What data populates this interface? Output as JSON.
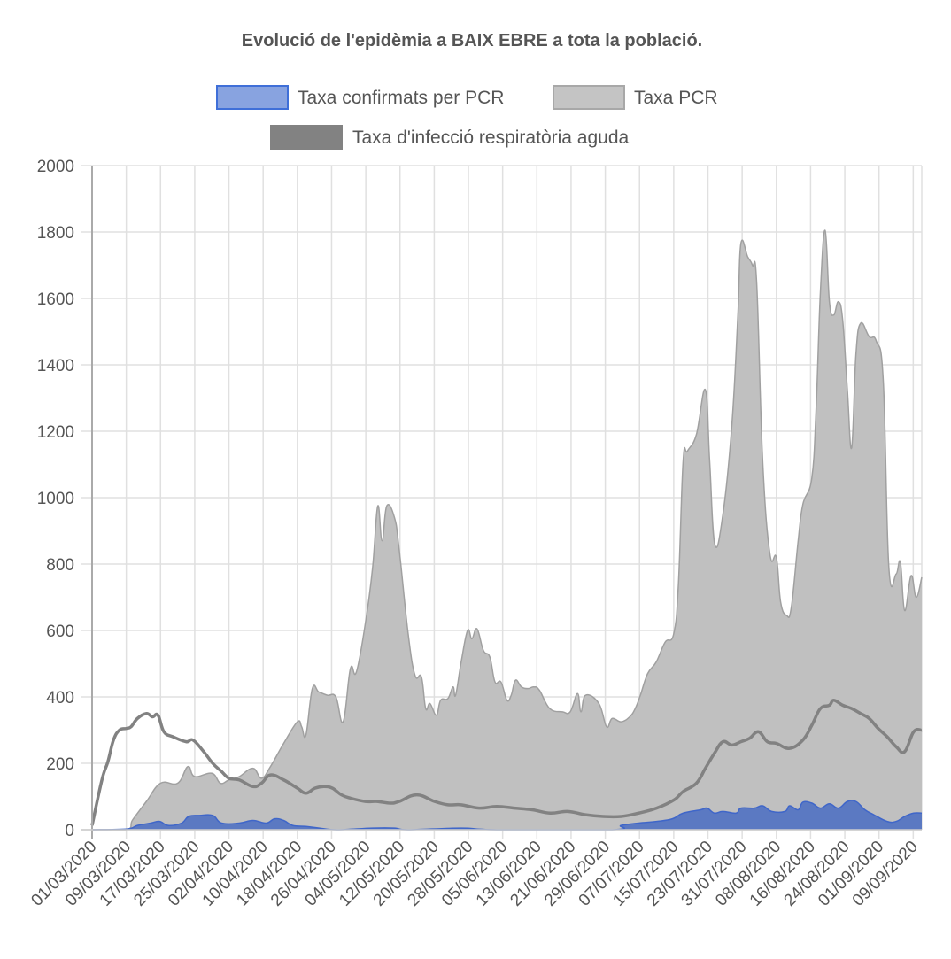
{
  "chart_data": {
    "type": "area",
    "title": "Evolució de l'epidèmia a BAIX EBRE a tota la població.",
    "xlabel": "",
    "ylabel": "",
    "x_unit": "days since 01/03/2020",
    "xlim": [
      0,
      194
    ],
    "ylim": [
      0,
      2000
    ],
    "grid": true,
    "legend_position": "top",
    "y_ticks": [
      "0",
      "200",
      "400",
      "600",
      "800",
      "1000",
      "1200",
      "1400",
      "1600",
      "1800",
      "2000"
    ],
    "x_ticks": [
      "01/03/2020",
      "09/03/2020",
      "17/03/2020",
      "25/03/2020",
      "02/04/2020",
      "10/04/2020",
      "18/04/2020",
      "26/04/2020",
      "04/05/2020",
      "12/05/2020",
      "20/05/2020",
      "28/05/2020",
      "05/06/2020",
      "13/06/2020",
      "21/06/2020",
      "29/06/2020",
      "07/07/2020",
      "15/07/2020",
      "23/07/2020",
      "31/07/2020",
      "08/08/2020",
      "16/08/2020",
      "24/08/2020",
      "01/09/2020",
      "09/09/2020"
    ],
    "x_tick_step_days": 8,
    "series": [
      {
        "name": "Taxa confirmats per PCR",
        "kind": "area",
        "fill": "#5b79c2",
        "stroke": "#3f66c9",
        "legend_fill": "#88a3e0",
        "legend_stroke": "#3f6fd8",
        "points": [
          [
            0,
            0
          ],
          [
            8,
            2
          ],
          [
            10.6,
            13
          ],
          [
            13.7,
            20
          ],
          [
            15.8,
            25
          ],
          [
            17.8,
            13
          ],
          [
            20.9,
            20
          ],
          [
            22.6,
            40
          ],
          [
            25.1,
            43
          ],
          [
            28.2,
            43
          ],
          [
            30.3,
            20
          ],
          [
            34.4,
            20
          ],
          [
            37.6,
            28
          ],
          [
            40.7,
            20
          ],
          [
            42.7,
            33
          ],
          [
            44.8,
            28
          ],
          [
            46.9,
            13
          ],
          [
            50,
            10
          ],
          [
            53.1,
            5
          ],
          [
            57.3,
            0
          ],
          [
            65.6,
            5
          ],
          [
            70.7,
            5
          ],
          [
            73.9,
            0
          ],
          [
            86.3,
            5
          ],
          [
            94.6,
            0
          ],
          [
            121.6,
            0
          ],
          [
            123.7,
            13
          ],
          [
            127.8,
            20
          ],
          [
            132,
            25
          ],
          [
            135.7,
            33
          ],
          [
            138.2,
            50
          ],
          [
            142.3,
            60
          ],
          [
            143.8,
            65
          ],
          [
            145.5,
            50
          ],
          [
            147.5,
            55
          ],
          [
            150.6,
            50
          ],
          [
            151.7,
            65
          ],
          [
            154.8,
            65
          ],
          [
            156.8,
            72
          ],
          [
            158.9,
            55
          ],
          [
            162,
            55
          ],
          [
            163.1,
            72
          ],
          [
            165.1,
            60
          ],
          [
            166.2,
            83
          ],
          [
            168.3,
            80
          ],
          [
            170.3,
            65
          ],
          [
            172.4,
            78
          ],
          [
            174.5,
            65
          ],
          [
            176.6,
            85
          ],
          [
            178.6,
            85
          ],
          [
            180.7,
            60
          ],
          [
            182.8,
            45
          ],
          [
            185.9,
            25
          ],
          [
            188,
            25
          ],
          [
            190,
            40
          ],
          [
            192.1,
            50
          ],
          [
            194,
            50
          ]
        ]
      },
      {
        "name": "Taxa PCR",
        "kind": "area",
        "fill": "#c0c0c0",
        "stroke": "#a0a0a0",
        "legend_fill": "#c4c4c4",
        "legend_stroke": "#a8a8a8",
        "points": [
          [
            0,
            0
          ],
          [
            8,
            0
          ],
          [
            9.5,
            30
          ],
          [
            12.7,
            85
          ],
          [
            16,
            140
          ],
          [
            20,
            140
          ],
          [
            22.4,
            190
          ],
          [
            24,
            160
          ],
          [
            28,
            170
          ],
          [
            30,
            140
          ],
          [
            32,
            150
          ],
          [
            34.4,
            160
          ],
          [
            37.6,
            185
          ],
          [
            39.6,
            155
          ],
          [
            41.7,
            190
          ],
          [
            44.8,
            260
          ],
          [
            48,
            325
          ],
          [
            49,
            310
          ],
          [
            50,
            285
          ],
          [
            51.5,
            425
          ],
          [
            53,
            415
          ],
          [
            55,
            405
          ],
          [
            57,
            400
          ],
          [
            58.7,
            325
          ],
          [
            60.4,
            485
          ],
          [
            61.8,
            475
          ],
          [
            64,
            630
          ],
          [
            65.6,
            790
          ],
          [
            66.8,
            975
          ],
          [
            67.8,
            870
          ],
          [
            68.9,
            975
          ],
          [
            70.7,
            940
          ],
          [
            71.8,
            845
          ],
          [
            73.9,
            590
          ],
          [
            75.5,
            465
          ],
          [
            77,
            460
          ],
          [
            78,
            365
          ],
          [
            79,
            380
          ],
          [
            80.5,
            345
          ],
          [
            81.5,
            390
          ],
          [
            83.2,
            395
          ],
          [
            84.4,
            430
          ],
          [
            85,
            405
          ],
          [
            86.3,
            505
          ],
          [
            87.8,
            600
          ],
          [
            88.8,
            575
          ],
          [
            90,
            605
          ],
          [
            91.5,
            540
          ],
          [
            93,
            520
          ],
          [
            94.2,
            445
          ],
          [
            95.6,
            445
          ],
          [
            97,
            390
          ],
          [
            98,
            405
          ],
          [
            99,
            450
          ],
          [
            100.4,
            430
          ],
          [
            101.9,
            425
          ],
          [
            103.3,
            430
          ],
          [
            104.6,
            420
          ],
          [
            107,
            365
          ],
          [
            110,
            355
          ],
          [
            111.8,
            355
          ],
          [
            113.5,
            410
          ],
          [
            114.3,
            355
          ],
          [
            115.4,
            405
          ],
          [
            118.5,
            380
          ],
          [
            120.3,
            310
          ],
          [
            121.6,
            335
          ],
          [
            123.7,
            325
          ],
          [
            125.7,
            340
          ],
          [
            127,
            365
          ],
          [
            128.2,
            405
          ],
          [
            129.9,
            470
          ],
          [
            131.9,
            505
          ],
          [
            134,
            565
          ],
          [
            136,
            590
          ],
          [
            137.1,
            740
          ],
          [
            138.2,
            1110
          ],
          [
            139.2,
            1140
          ],
          [
            141.3,
            1190
          ],
          [
            143.4,
            1325
          ],
          [
            144.4,
            1110
          ],
          [
            145.6,
            860
          ],
          [
            147.5,
            950
          ],
          [
            149.6,
            1220
          ],
          [
            151,
            1550
          ],
          [
            151.7,
            1765
          ],
          [
            153.3,
            1725
          ],
          [
            154.4,
            1700
          ],
          [
            155.4,
            1645
          ],
          [
            156.8,
            1110
          ],
          [
            158.5,
            830
          ],
          [
            160,
            820
          ],
          [
            161,
            685
          ],
          [
            162.4,
            645
          ],
          [
            163.5,
            670
          ],
          [
            165.1,
            870
          ],
          [
            166.2,
            980
          ],
          [
            168.3,
            1060
          ],
          [
            169.3,
            1270
          ],
          [
            170.3,
            1620
          ],
          [
            171.4,
            1805
          ],
          [
            172.4,
            1590
          ],
          [
            173.4,
            1550
          ],
          [
            174.5,
            1590
          ],
          [
            175.5,
            1535
          ],
          [
            176.6,
            1325
          ],
          [
            177.6,
            1150
          ],
          [
            178.6,
            1430
          ],
          [
            179.7,
            1525
          ],
          [
            181.7,
            1485
          ],
          [
            183.4,
            1470
          ],
          [
            185,
            1350
          ],
          [
            186.3,
            790
          ],
          [
            188,
            770
          ],
          [
            189,
            805
          ],
          [
            190,
            660
          ],
          [
            191.5,
            765
          ],
          [
            192.7,
            700
          ],
          [
            194,
            760
          ]
        ]
      },
      {
        "name": "Taxa d'infecció respiratòria aguda",
        "kind": "line",
        "stroke": "#828282",
        "legend_fill": "#828282",
        "legend_stroke": "#828282",
        "points": [
          [
            0,
            13
          ],
          [
            2.3,
            150
          ],
          [
            3.7,
            205
          ],
          [
            5,
            270
          ],
          [
            6.4,
            300
          ],
          [
            8,
            305
          ],
          [
            9.1,
            310
          ],
          [
            10.6,
            335
          ],
          [
            12.7,
            350
          ],
          [
            14.1,
            340
          ],
          [
            15.4,
            345
          ],
          [
            16.8,
            295
          ],
          [
            18.9,
            280
          ],
          [
            22,
            265
          ],
          [
            23.6,
            270
          ],
          [
            26.1,
            235
          ],
          [
            28.2,
            200
          ],
          [
            30.3,
            175
          ],
          [
            32,
            155
          ],
          [
            34.4,
            150
          ],
          [
            37.6,
            130
          ],
          [
            39.6,
            140
          ],
          [
            41.7,
            165
          ],
          [
            44.8,
            150
          ],
          [
            48,
            125
          ],
          [
            50,
            110
          ],
          [
            52.1,
            125
          ],
          [
            54.2,
            130
          ],
          [
            56.2,
            125
          ],
          [
            58.3,
            105
          ],
          [
            60.4,
            95
          ],
          [
            63.9,
            85
          ],
          [
            66.6,
            85
          ],
          [
            69.7,
            80
          ],
          [
            71.8,
            85
          ],
          [
            75.9,
            105
          ],
          [
            80.1,
            85
          ],
          [
            83.2,
            75
          ],
          [
            86.3,
            75
          ],
          [
            90.5,
            65
          ],
          [
            94.6,
            70
          ],
          [
            98.8,
            65
          ],
          [
            102.9,
            60
          ],
          [
            107.1,
            50
          ],
          [
            111.2,
            55
          ],
          [
            115.4,
            45
          ],
          [
            119.5,
            40
          ],
          [
            123.7,
            40
          ],
          [
            127.8,
            50
          ],
          [
            132,
            65
          ],
          [
            136.1,
            90
          ],
          [
            138.2,
            115
          ],
          [
            141.3,
            140
          ],
          [
            143.4,
            185
          ],
          [
            145.5,
            230
          ],
          [
            147.5,
            265
          ],
          [
            149.6,
            255
          ],
          [
            151.7,
            265
          ],
          [
            153.7,
            275
          ],
          [
            155.8,
            295
          ],
          [
            157.9,
            265
          ],
          [
            160,
            260
          ],
          [
            163.1,
            245
          ],
          [
            166.2,
            270
          ],
          [
            168.3,
            315
          ],
          [
            170.3,
            365
          ],
          [
            172.4,
            375
          ],
          [
            173.4,
            390
          ],
          [
            175.5,
            375
          ],
          [
            177.6,
            365
          ],
          [
            179.7,
            350
          ],
          [
            181.7,
            335
          ],
          [
            183.8,
            305
          ],
          [
            185.9,
            280
          ],
          [
            188,
            250
          ],
          [
            190,
            235
          ],
          [
            192.1,
            295
          ],
          [
            194,
            300
          ]
        ]
      }
    ]
  }
}
